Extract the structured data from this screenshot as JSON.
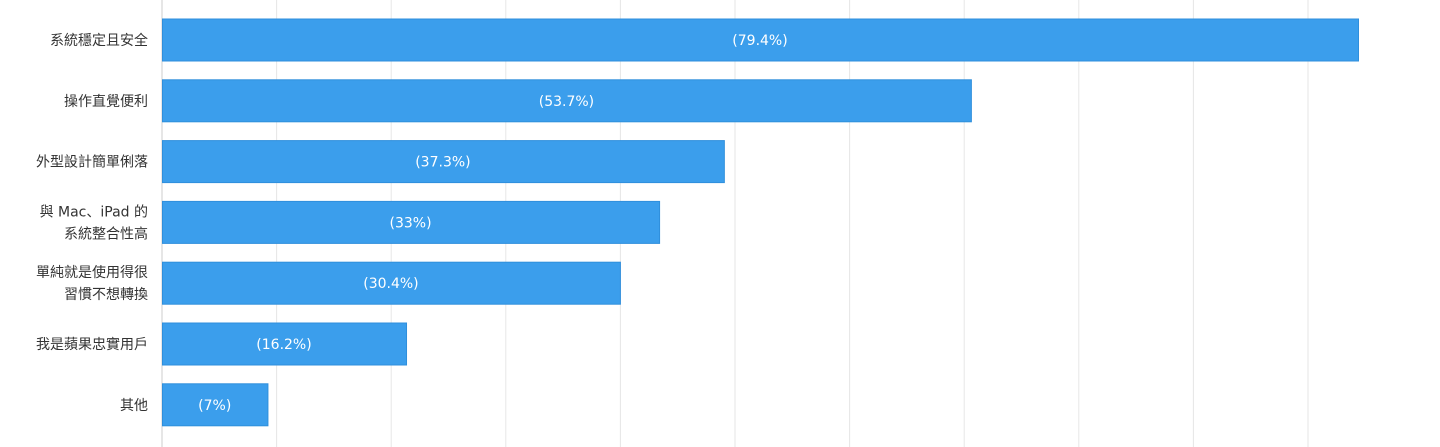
{
  "chart_data": {
    "type": "bar",
    "orientation": "horizontal",
    "categories": [
      [
        "系統穩定且安全"
      ],
      [
        "操作直覺便利"
      ],
      [
        "外型設計簡單俐落"
      ],
      [
        "與 Mac、iPad 的",
        "系統整合性高"
      ],
      [
        "單純就是使用得很",
        "習慣不想轉換"
      ],
      [
        "我是蘋果忠實用戶"
      ],
      [
        "其他"
      ]
    ],
    "values": [
      79.4,
      53.7,
      37.3,
      33,
      30.4,
      16.2,
      7
    ],
    "value_labels": [
      "(79.4%)",
      "(53.7%)",
      "(37.3%)",
      "(33%)",
      "(30.4%)",
      "(16.2%)",
      "(7%)"
    ],
    "xlim": [
      0,
      85
    ],
    "grid": true,
    "colors": {
      "bar": "#3b9eec",
      "bar_border": "#2f8fdc",
      "grid": "#e6e6e6",
      "axis": "#cccccc"
    }
  }
}
